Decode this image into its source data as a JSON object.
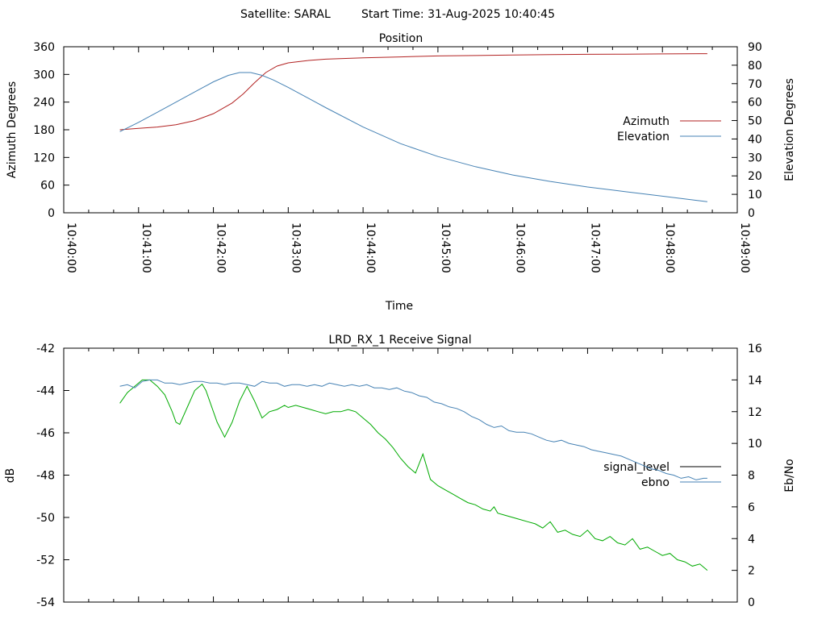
{
  "header": {
    "satellite_label": "Satellite: SARAL",
    "start_time_label": "Start Time: 31-Aug-2025 10:40:45"
  },
  "chart_data": [
    {
      "type": "line",
      "title": "Position",
      "xlabel": "Time",
      "ylabel": "Azimuth Degrees",
      "y2label": "Elevation Degrees",
      "x_ticks": [
        "10:40:00",
        "10:41:00",
        "10:42:00",
        "10:43:00",
        "10:44:00",
        "10:45:00",
        "10:46:00",
        "10:47:00",
        "10:48:00",
        "10:49:00"
      ],
      "xlim_minutes": [
        0,
        9
      ],
      "ylim": [
        0,
        360
      ],
      "y_ticks": [
        "0",
        "60",
        "120",
        "180",
        "240",
        "300",
        "360"
      ],
      "y2lim": [
        0,
        90
      ],
      "y2_ticks": [
        "0",
        "10",
        "20",
        "30",
        "40",
        "50",
        "60",
        "70",
        "80",
        "90"
      ],
      "legend_position": "right",
      "series": [
        {
          "name": "Azimuth",
          "axis": "y",
          "color": "#b22222",
          "x": [
            0.75,
            1.0,
            1.25,
            1.5,
            1.75,
            2.0,
            2.25,
            2.4,
            2.55,
            2.7,
            2.85,
            3.0,
            3.25,
            3.5,
            4.0,
            4.5,
            5.0,
            5.5,
            6.0,
            6.5,
            7.0,
            7.5,
            8.0,
            8.5,
            8.6
          ],
          "y": [
            180,
            183,
            186,
            191,
            200,
            215,
            238,
            258,
            282,
            304,
            318,
            325,
            330,
            333,
            336,
            338,
            340,
            341,
            342,
            343,
            343.5,
            344,
            344.5,
            345,
            345
          ]
        },
        {
          "name": "Elevation",
          "axis": "y2",
          "color": "#4682b4",
          "x": [
            0.75,
            1.0,
            1.25,
            1.5,
            1.75,
            2.0,
            2.2,
            2.35,
            2.5,
            2.65,
            2.8,
            3.0,
            3.25,
            3.5,
            4.0,
            4.5,
            5.0,
            5.5,
            6.0,
            6.5,
            7.0,
            7.5,
            8.0,
            8.5,
            8.6
          ],
          "y": [
            44,
            49,
            54.5,
            60,
            65.5,
            71,
            74.5,
            76,
            76,
            74.5,
            72,
            68,
            62.5,
            57,
            46.5,
            37.5,
            30.5,
            25,
            20.5,
            17,
            14,
            11.5,
            9,
            6.5,
            6
          ]
        }
      ]
    },
    {
      "type": "line",
      "title": "LRD_RX_1 Receive Signal",
      "xlabel": "",
      "ylabel": "dB",
      "y2label": "Eb/No",
      "xlim_minutes": [
        0,
        9
      ],
      "ylim": [
        -54,
        -42
      ],
      "y_ticks": [
        "-54",
        "-52",
        "-50",
        "-48",
        "-46",
        "-44",
        "-42"
      ],
      "y2lim": [
        0,
        16
      ],
      "y2_ticks": [
        "0",
        "2",
        "4",
        "6",
        "8",
        "10",
        "12",
        "14",
        "16"
      ],
      "legend_position": "right",
      "series": [
        {
          "name": "signal_level",
          "axis": "y",
          "color": "#00aa00",
          "legend_color": "#000000",
          "x": [
            0.75,
            0.85,
            0.95,
            1.05,
            1.15,
            1.25,
            1.35,
            1.45,
            1.5,
            1.55,
            1.65,
            1.75,
            1.85,
            1.9,
            1.95,
            2.05,
            2.15,
            2.25,
            2.35,
            2.45,
            2.55,
            2.65,
            2.75,
            2.85,
            2.95,
            3.0,
            3.1,
            3.2,
            3.3,
            3.4,
            3.5,
            3.6,
            3.7,
            3.8,
            3.9,
            4.0,
            4.1,
            4.2,
            4.3,
            4.4,
            4.5,
            4.6,
            4.7,
            4.8,
            4.9,
            5.0,
            5.1,
            5.2,
            5.3,
            5.4,
            5.5,
            5.6,
            5.7,
            5.75,
            5.8,
            5.9,
            6.0,
            6.1,
            6.2,
            6.3,
            6.4,
            6.5,
            6.6,
            6.7,
            6.8,
            6.9,
            7.0,
            7.1,
            7.2,
            7.3,
            7.4,
            7.5,
            7.6,
            7.7,
            7.8,
            7.9,
            8.0,
            8.1,
            8.2,
            8.3,
            8.4,
            8.5,
            8.6
          ],
          "y": [
            -44.6,
            -44.1,
            -43.8,
            -43.5,
            -43.5,
            -43.8,
            -44.2,
            -45.0,
            -45.5,
            -45.6,
            -44.8,
            -44.0,
            -43.7,
            -44.0,
            -44.5,
            -45.5,
            -46.2,
            -45.5,
            -44.5,
            -43.8,
            -44.5,
            -45.3,
            -45.0,
            -44.9,
            -44.7,
            -44.8,
            -44.7,
            -44.8,
            -44.9,
            -45.0,
            -45.1,
            -45.0,
            -45.0,
            -44.9,
            -45.0,
            -45.3,
            -45.6,
            -46.0,
            -46.3,
            -46.7,
            -47.2,
            -47.6,
            -47.9,
            -47.0,
            -48.2,
            -48.5,
            -48.7,
            -48.9,
            -49.1,
            -49.3,
            -49.4,
            -49.6,
            -49.7,
            -49.5,
            -49.8,
            -49.9,
            -50.0,
            -50.1,
            -50.2,
            -50.3,
            -50.5,
            -50.2,
            -50.7,
            -50.6,
            -50.8,
            -50.9,
            -50.6,
            -51.0,
            -51.1,
            -50.9,
            -51.2,
            -51.3,
            -51.0,
            -51.5,
            -51.4,
            -51.6,
            -51.8,
            -51.7,
            -52.0,
            -52.1,
            -52.3,
            -52.2,
            -52.5
          ]
        },
        {
          "name": "ebno",
          "axis": "y2",
          "color": "#4682b4",
          "x": [
            0.75,
            0.85,
            0.95,
            1.05,
            1.15,
            1.25,
            1.35,
            1.45,
            1.55,
            1.65,
            1.75,
            1.85,
            1.95,
            2.05,
            2.15,
            2.25,
            2.35,
            2.45,
            2.55,
            2.65,
            2.75,
            2.85,
            2.95,
            3.05,
            3.15,
            3.25,
            3.35,
            3.45,
            3.55,
            3.65,
            3.75,
            3.85,
            3.95,
            4.05,
            4.15,
            4.25,
            4.35,
            4.45,
            4.55,
            4.65,
            4.75,
            4.85,
            4.95,
            5.05,
            5.15,
            5.25,
            5.35,
            5.45,
            5.55,
            5.65,
            5.75,
            5.85,
            5.95,
            6.05,
            6.15,
            6.25,
            6.35,
            6.45,
            6.55,
            6.65,
            6.75,
            6.85,
            6.95,
            7.05,
            7.15,
            7.25,
            7.35,
            7.45,
            7.55,
            7.65,
            7.75,
            7.85,
            7.95,
            8.05,
            8.15,
            8.25,
            8.35,
            8.45,
            8.55,
            8.6
          ],
          "y": [
            13.6,
            13.7,
            13.5,
            13.9,
            14.0,
            14.0,
            13.8,
            13.8,
            13.7,
            13.8,
            13.9,
            13.9,
            13.8,
            13.8,
            13.7,
            13.8,
            13.8,
            13.7,
            13.6,
            13.9,
            13.8,
            13.8,
            13.6,
            13.7,
            13.7,
            13.6,
            13.7,
            13.6,
            13.8,
            13.7,
            13.6,
            13.7,
            13.6,
            13.7,
            13.5,
            13.5,
            13.4,
            13.5,
            13.3,
            13.2,
            13.0,
            12.9,
            12.6,
            12.5,
            12.3,
            12.2,
            12.0,
            11.7,
            11.5,
            11.2,
            11.0,
            11.1,
            10.8,
            10.7,
            10.7,
            10.6,
            10.4,
            10.2,
            10.1,
            10.2,
            10.0,
            9.9,
            9.8,
            9.6,
            9.5,
            9.4,
            9.3,
            9.2,
            9.0,
            8.8,
            8.6,
            8.4,
            8.3,
            8.1,
            8.0,
            7.8,
            7.9,
            7.7,
            7.8,
            7.8
          ]
        }
      ]
    }
  ]
}
